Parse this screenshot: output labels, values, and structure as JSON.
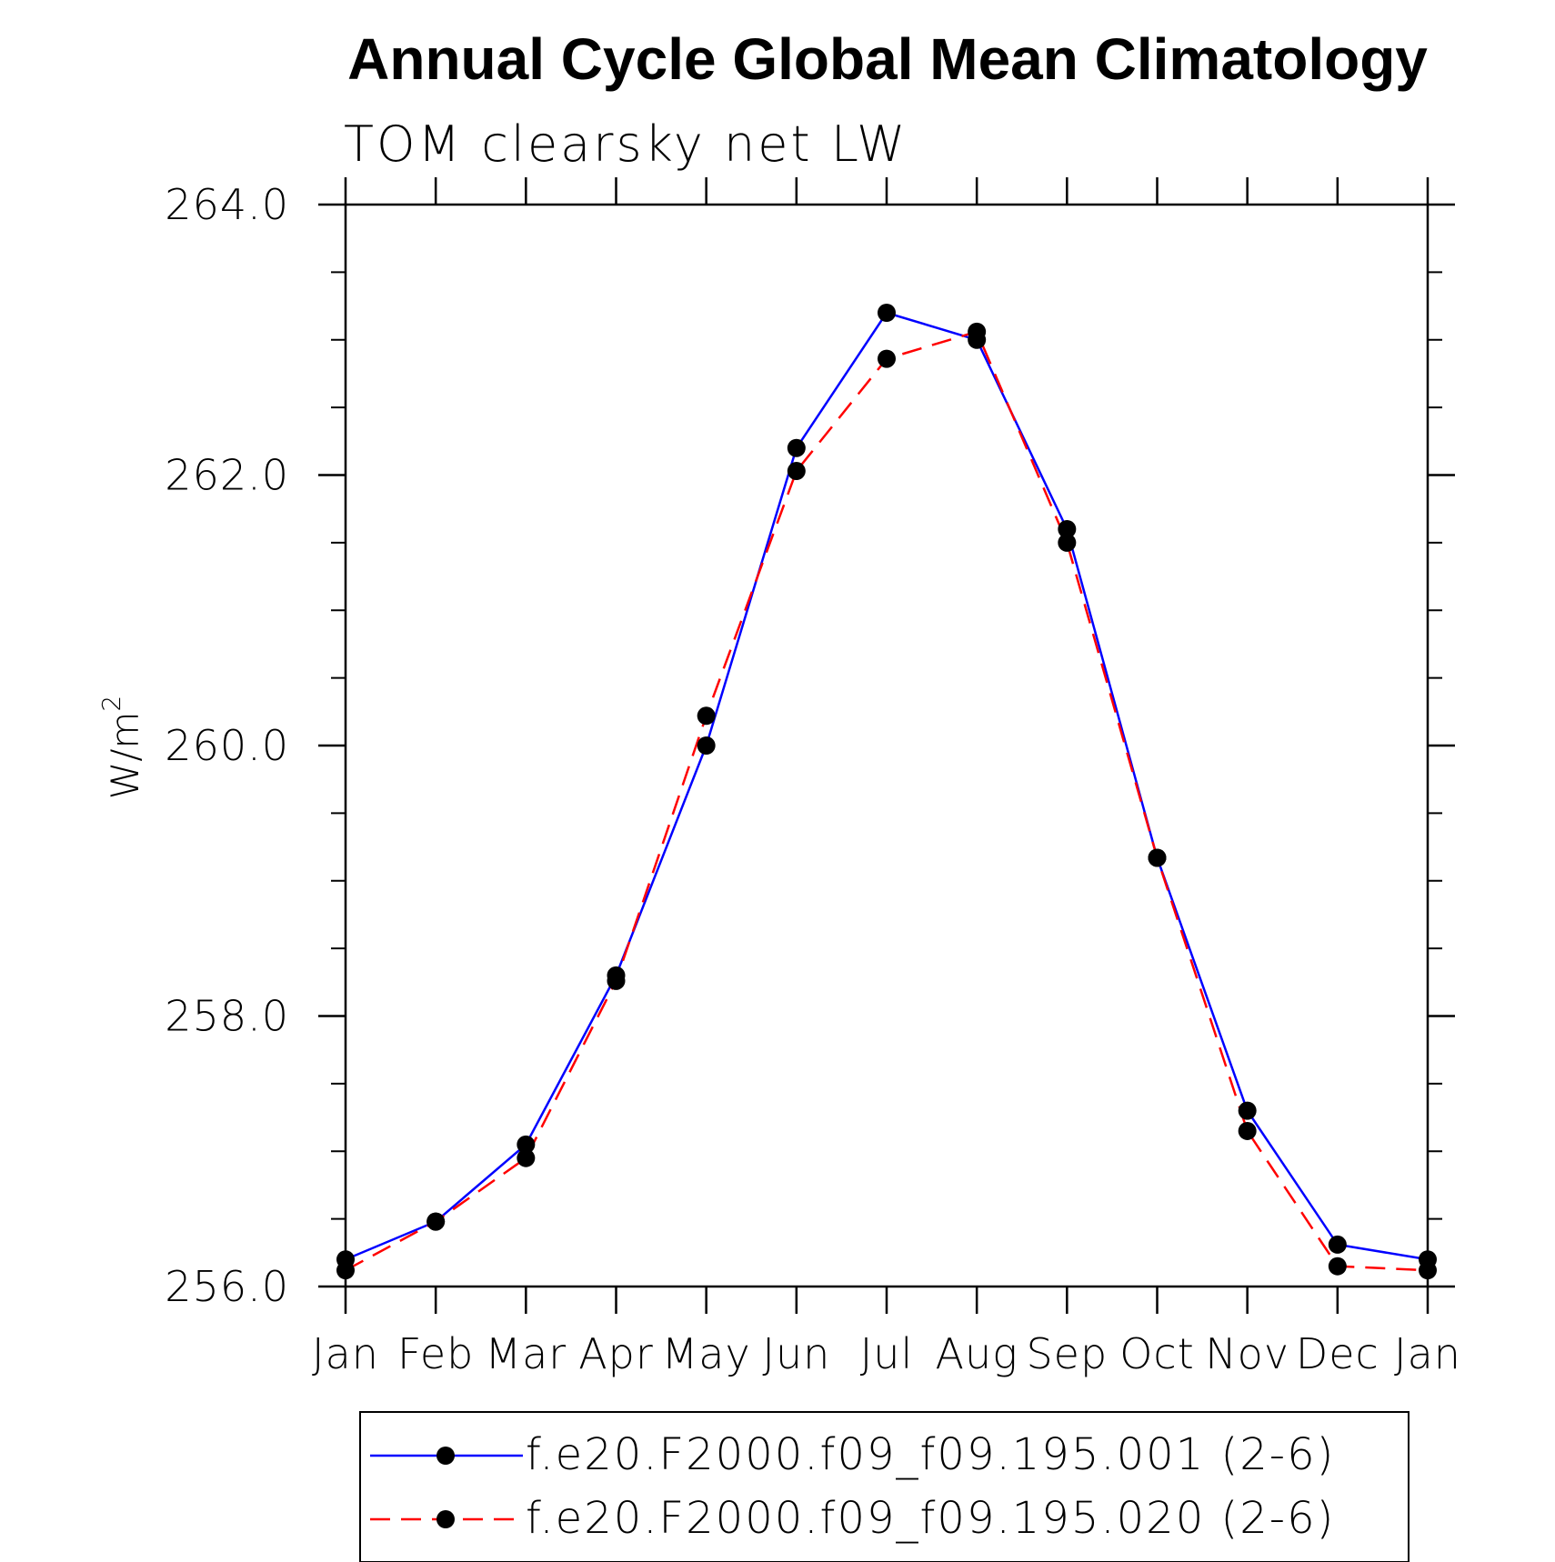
{
  "chart_data": {
    "type": "line",
    "title": "Annual Cycle Global Mean Climatology",
    "subtitle": "TOM clearsky net LW",
    "ylabel_base": "W/m",
    "ylabel_sup": "2",
    "xlabel": "",
    "ylim": [
      256.0,
      264.0
    ],
    "y_major_ticks": [
      256.0,
      258.0,
      260.0,
      262.0,
      264.0
    ],
    "y_tick_labels": [
      "256.0",
      "258.0",
      "260.0",
      "262.0",
      "264.0"
    ],
    "y_minor_step": 0.5,
    "categories": [
      "Jan",
      "Feb",
      "Mar",
      "Apr",
      "May",
      "Jun",
      "Jul",
      "Aug",
      "Sep",
      "Oct",
      "Nov",
      "Dec",
      "Jan"
    ],
    "series": [
      {
        "name": "f.e20.F2000.f09_f09.195.001 (2-6)",
        "color": "#0000ff",
        "dash": "solid",
        "values": [
          256.2,
          256.48,
          257.05,
          258.3,
          260.0,
          262.2,
          263.2,
          263.0,
          261.6,
          259.17,
          257.3,
          256.31,
          256.2
        ]
      },
      {
        "name": "f.e20.F2000.f09_f09.195.020 (2-6)",
        "color": "#ff0000",
        "dash": "dashed",
        "values": [
          256.12,
          256.48,
          256.95,
          258.26,
          260.22,
          262.03,
          262.86,
          263.06,
          261.5,
          259.17,
          257.15,
          256.15,
          256.12
        ]
      }
    ],
    "legend_position": "bottom"
  }
}
